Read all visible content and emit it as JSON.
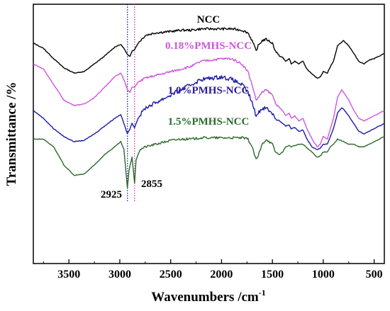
{
  "chart_data": {
    "type": "line",
    "xlabel": "Wavenumbers /cm",
    "xlabel_superscript": "-1",
    "ylabel": "Transmittance /%",
    "xlim": [
      3850,
      400
    ],
    "x_reversed": true,
    "ylim": [
      0,
      100
    ],
    "y_ticks_labeled": false,
    "x_ticks": [
      3500,
      3000,
      2500,
      2000,
      1500,
      1000,
      500
    ],
    "x_tick_labels": [
      "3500",
      "3000",
      "2500",
      "2000",
      "1500",
      "1000",
      "500"
    ],
    "grid": false,
    "legend": "inline labels next to curves",
    "series": [
      {
        "name": "NCC",
        "color": "#000000",
        "label_color": "#000000",
        "points": [
          [
            3850,
            85
          ],
          [
            3750,
            83
          ],
          [
            3650,
            79
          ],
          [
            3550,
            75.5
          ],
          [
            3450,
            73.5
          ],
          [
            3350,
            74
          ],
          [
            3250,
            77
          ],
          [
            3150,
            80
          ],
          [
            3050,
            83.5
          ],
          [
            2990,
            84.5
          ],
          [
            2960,
            83
          ],
          [
            2925,
            80.5
          ],
          [
            2900,
            80
          ],
          [
            2880,
            82
          ],
          [
            2855,
            82.5
          ],
          [
            2820,
            85
          ],
          [
            2750,
            88
          ],
          [
            2650,
            89
          ],
          [
            2500,
            89.5
          ],
          [
            2400,
            90
          ],
          [
            2300,
            90
          ],
          [
            2200,
            90.5
          ],
          [
            2100,
            90.5
          ],
          [
            2000,
            90.5
          ],
          [
            1900,
            90.5
          ],
          [
            1800,
            90
          ],
          [
            1740,
            89
          ],
          [
            1700,
            86
          ],
          [
            1660,
            82
          ],
          [
            1640,
            84
          ],
          [
            1600,
            86
          ],
          [
            1560,
            86.5
          ],
          [
            1500,
            85
          ],
          [
            1470,
            82
          ],
          [
            1430,
            80
          ],
          [
            1400,
            79.5
          ],
          [
            1370,
            78
          ],
          [
            1335,
            79
          ],
          [
            1315,
            77
          ],
          [
            1280,
            78
          ],
          [
            1240,
            77
          ],
          [
            1200,
            78
          ],
          [
            1160,
            75
          ],
          [
            1110,
            73
          ],
          [
            1060,
            71.5
          ],
          [
            1030,
            72
          ],
          [
            1000,
            74
          ],
          [
            960,
            73.5
          ],
          [
            930,
            76
          ],
          [
            900,
            78
          ],
          [
            860,
            84
          ],
          [
            800,
            86
          ],
          [
            750,
            84
          ],
          [
            700,
            81
          ],
          [
            650,
            78
          ],
          [
            600,
            77
          ],
          [
            550,
            78.5
          ],
          [
            500,
            79
          ],
          [
            450,
            80
          ],
          [
            400,
            81
          ]
        ]
      },
      {
        "name": "0.18%PMHS-NCC",
        "color": "#cc55dd",
        "label_color": "#cc55dd",
        "points": [
          [
            3850,
            77
          ],
          [
            3750,
            75
          ],
          [
            3650,
            69
          ],
          [
            3550,
            63
          ],
          [
            3450,
            61
          ],
          [
            3350,
            61.5
          ],
          [
            3250,
            64
          ],
          [
            3150,
            68
          ],
          [
            3050,
            72
          ],
          [
            2990,
            73.5
          ],
          [
            2960,
            71
          ],
          [
            2925,
            67
          ],
          [
            2900,
            66
          ],
          [
            2880,
            68
          ],
          [
            2855,
            68
          ],
          [
            2820,
            70
          ],
          [
            2750,
            71.5
          ],
          [
            2650,
            72.5
          ],
          [
            2500,
            74
          ],
          [
            2400,
            75
          ],
          [
            2300,
            76
          ],
          [
            2200,
            78
          ],
          [
            2100,
            78.5
          ],
          [
            2000,
            79
          ],
          [
            1900,
            79
          ],
          [
            1800,
            77
          ],
          [
            1740,
            74
          ],
          [
            1700,
            69
          ],
          [
            1660,
            63
          ],
          [
            1640,
            64
          ],
          [
            1600,
            66
          ],
          [
            1560,
            67
          ],
          [
            1500,
            65
          ],
          [
            1470,
            62
          ],
          [
            1430,
            60
          ],
          [
            1400,
            59
          ],
          [
            1370,
            57
          ],
          [
            1335,
            58
          ],
          [
            1315,
            56
          ],
          [
            1280,
            57
          ],
          [
            1240,
            55
          ],
          [
            1200,
            56
          ],
          [
            1160,
            52
          ],
          [
            1110,
            48
          ],
          [
            1060,
            45
          ],
          [
            1030,
            46
          ],
          [
            1000,
            49
          ],
          [
            960,
            48
          ],
          [
            930,
            52
          ],
          [
            900,
            56
          ],
          [
            860,
            64
          ],
          [
            820,
            67
          ],
          [
            800,
            66
          ],
          [
            750,
            63
          ],
          [
            700,
            59
          ],
          [
            650,
            56
          ],
          [
            600,
            55
          ],
          [
            550,
            56
          ],
          [
            500,
            57
          ],
          [
            450,
            58
          ],
          [
            400,
            59
          ]
        ]
      },
      {
        "name": "1.0%PMHS-NCC",
        "color": "#1a1aaa",
        "label_color": "#2a1a99",
        "points": [
          [
            3850,
            59
          ],
          [
            3750,
            56
          ],
          [
            3650,
            52
          ],
          [
            3550,
            49
          ],
          [
            3450,
            47
          ],
          [
            3350,
            47.5
          ],
          [
            3250,
            50
          ],
          [
            3150,
            53
          ],
          [
            3050,
            56
          ],
          [
            2990,
            57.5
          ],
          [
            2960,
            54
          ],
          [
            2925,
            50
          ],
          [
            2900,
            52
          ],
          [
            2880,
            54
          ],
          [
            2855,
            52.5
          ],
          [
            2820,
            56
          ],
          [
            2750,
            60
          ],
          [
            2650,
            62
          ],
          [
            2500,
            65
          ],
          [
            2400,
            67
          ],
          [
            2300,
            69
          ],
          [
            2200,
            71
          ],
          [
            2100,
            71.5
          ],
          [
            2000,
            72
          ],
          [
            1900,
            71
          ],
          [
            1800,
            69
          ],
          [
            1740,
            66
          ],
          [
            1700,
            62
          ],
          [
            1660,
            57
          ],
          [
            1640,
            58
          ],
          [
            1600,
            60
          ],
          [
            1560,
            60
          ],
          [
            1500,
            58
          ],
          [
            1470,
            56
          ],
          [
            1430,
            55
          ],
          [
            1400,
            54
          ],
          [
            1370,
            53
          ],
          [
            1335,
            53.5
          ],
          [
            1315,
            52
          ],
          [
            1280,
            52.5
          ],
          [
            1240,
            51
          ],
          [
            1200,
            51.5
          ],
          [
            1160,
            48
          ],
          [
            1110,
            45
          ],
          [
            1060,
            44
          ],
          [
            1030,
            44.5
          ],
          [
            1000,
            46
          ],
          [
            960,
            46
          ],
          [
            930,
            49
          ],
          [
            900,
            52
          ],
          [
            860,
            58
          ],
          [
            820,
            60
          ],
          [
            800,
            59.5
          ],
          [
            750,
            57
          ],
          [
            700,
            54
          ],
          [
            650,
            51
          ],
          [
            600,
            50
          ],
          [
            550,
            51
          ],
          [
            500,
            52
          ],
          [
            450,
            53
          ],
          [
            400,
            54
          ]
        ]
      },
      {
        "name": "1.5%PMHS-NCC",
        "color": "#2a6a2a",
        "label_color": "#2a6a2a",
        "points": [
          [
            3850,
            48
          ],
          [
            3750,
            48
          ],
          [
            3650,
            45
          ],
          [
            3550,
            38
          ],
          [
            3450,
            34
          ],
          [
            3350,
            34.5
          ],
          [
            3250,
            38
          ],
          [
            3150,
            42
          ],
          [
            3050,
            45
          ],
          [
            2990,
            47
          ],
          [
            2960,
            44
          ],
          [
            2925,
            29
          ],
          [
            2910,
            36
          ],
          [
            2880,
            41
          ],
          [
            2855,
            31
          ],
          [
            2840,
            40
          ],
          [
            2800,
            44
          ],
          [
            2750,
            45
          ],
          [
            2650,
            46
          ],
          [
            2500,
            47.5
          ],
          [
            2400,
            48
          ],
          [
            2300,
            48
          ],
          [
            2200,
            48.5
          ],
          [
            2100,
            48.5
          ],
          [
            2000,
            48.5
          ],
          [
            1900,
            48.5
          ],
          [
            1800,
            48.5
          ],
          [
            1740,
            48
          ],
          [
            1700,
            45
          ],
          [
            1660,
            40
          ],
          [
            1640,
            41.5
          ],
          [
            1600,
            46
          ],
          [
            1560,
            48
          ],
          [
            1500,
            46
          ],
          [
            1470,
            43
          ],
          [
            1430,
            42
          ],
          [
            1400,
            43
          ],
          [
            1370,
            45
          ],
          [
            1335,
            45.5
          ],
          [
            1315,
            45
          ],
          [
            1280,
            45.5
          ],
          [
            1240,
            46
          ],
          [
            1200,
            46
          ],
          [
            1160,
            44.5
          ],
          [
            1110,
            43
          ],
          [
            1060,
            41
          ],
          [
            1030,
            41.5
          ],
          [
            1000,
            43
          ],
          [
            960,
            43
          ],
          [
            930,
            45
          ],
          [
            900,
            46
          ],
          [
            860,
            48
          ],
          [
            800,
            47
          ],
          [
            750,
            46
          ],
          [
            700,
            46
          ],
          [
            650,
            45
          ],
          [
            600,
            45
          ],
          [
            550,
            46
          ],
          [
            500,
            47
          ],
          [
            450,
            48
          ],
          [
            400,
            49
          ]
        ]
      }
    ],
    "annotations": [
      {
        "text": "2925",
        "x": 2925
      },
      {
        "text": "2855",
        "x": 2855
      }
    ],
    "reference_lines": [
      {
        "x": 2925,
        "style": "dotted",
        "color": "#1a1aaa"
      },
      {
        "x": 2855,
        "style": "dotted",
        "color": "#cc33cc"
      }
    ]
  }
}
